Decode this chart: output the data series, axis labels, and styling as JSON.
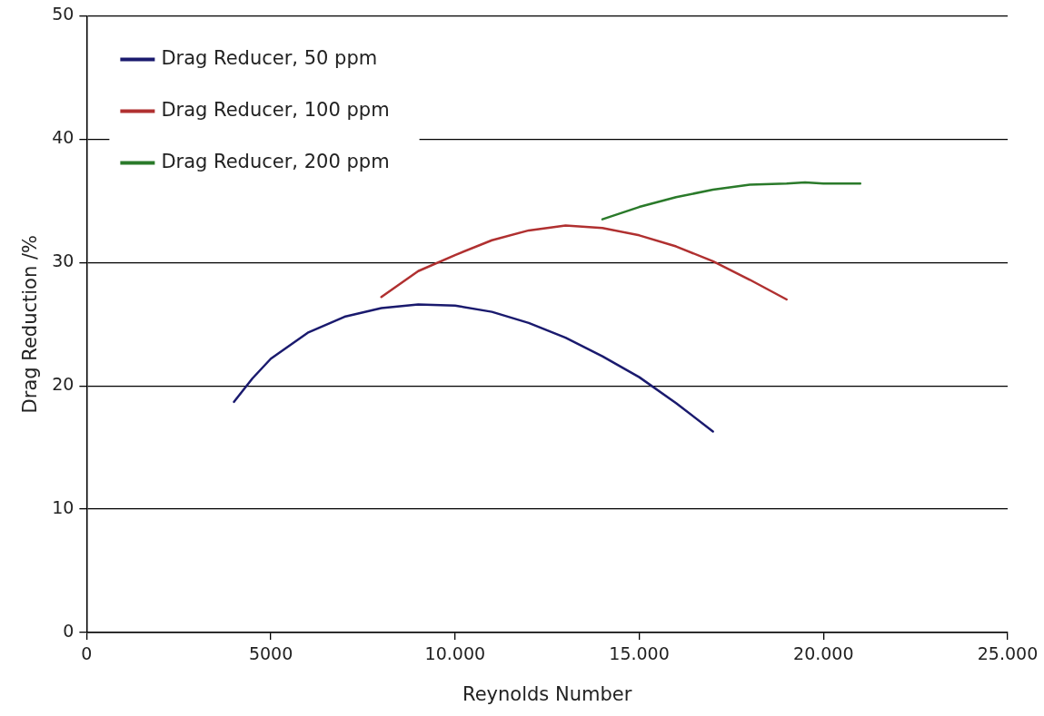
{
  "chart_data": {
    "type": "line",
    "xlabel": "Reynolds Number",
    "ylabel": "Drag Reduction /%",
    "xlim": [
      0,
      25000
    ],
    "xticks": [
      0,
      5000,
      {
        "value": 10000,
        "label": "10.000"
      },
      {
        "value": 15000,
        "label": "15.000"
      },
      {
        "value": 20000,
        "label": "20.000"
      },
      {
        "value": 25000,
        "label": "25.000"
      }
    ],
    "ylim": [
      0,
      50
    ],
    "yticks": [
      0,
      10,
      20,
      30,
      40,
      50
    ],
    "grid": "y",
    "legend": "top left",
    "marker": "none",
    "line_style": "solid",
    "series": [
      {
        "name": "Drag Reducer, 50 ppm",
        "color": "#1a1a6e",
        "x": [
          4000,
          4500,
          5000,
          6000,
          7000,
          8000,
          9000,
          10000,
          11000,
          12000,
          13000,
          14000,
          15000,
          16000,
          17000
        ],
        "values": [
          18.7,
          20.6,
          22.2,
          24.3,
          25.6,
          26.3,
          26.6,
          26.5,
          26,
          25.1,
          23.9,
          22.4,
          20.7,
          18.6,
          16.3
        ]
      },
      {
        "name": "Drag Reducer, 100 ppm",
        "color": "#b03030",
        "x": [
          8000,
          9000,
          10000,
          11000,
          12000,
          13000,
          14000,
          15000,
          16000,
          17000,
          18000,
          19000
        ],
        "values": [
          27.2,
          29.3,
          30.6,
          31.8,
          32.6,
          33,
          32.8,
          32.2,
          31.3,
          30.1,
          28.6,
          27
        ]
      },
      {
        "name": "Drag Reducer, 200 ppm",
        "color": "#2a7a2a",
        "x": [
          14000,
          15000,
          16000,
          17000,
          18000,
          19000,
          19500,
          20000,
          21000
        ],
        "values": [
          33.5,
          34.5,
          35.3,
          35.9,
          36.3,
          36.4,
          36.5,
          36.4,
          36.4
        ]
      }
    ]
  }
}
